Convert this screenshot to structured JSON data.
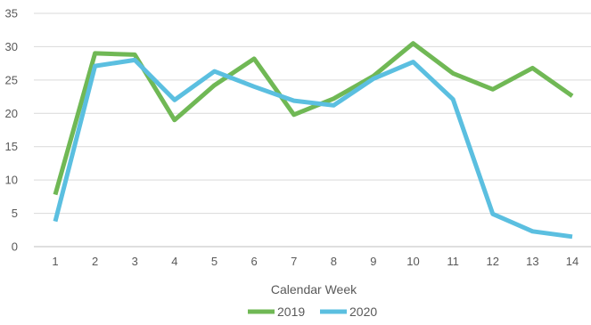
{
  "chart_data": {
    "type": "line",
    "title": "",
    "xlabel": "Calendar Week",
    "ylabel": "",
    "x": [
      1,
      2,
      3,
      4,
      5,
      6,
      7,
      8,
      9,
      10,
      11,
      12,
      13,
      14
    ],
    "x_tick_labels": [
      "1",
      "2",
      "3",
      "4",
      "5",
      "6",
      "7",
      "8",
      "9",
      "10",
      "11",
      "12",
      "13",
      "14"
    ],
    "ylim": [
      0,
      35
    ],
    "y_ticks": [
      0,
      5,
      10,
      15,
      20,
      25,
      30,
      35
    ],
    "y_tick_labels": [
      "0",
      "5",
      "10",
      "15",
      "20",
      "25",
      "30",
      "35"
    ],
    "grid": "horizontal",
    "legend_position": "bottom",
    "series": [
      {
        "name": "2019",
        "color": "#70b855",
        "values": [
          7.8,
          29.0,
          28.8,
          19.0,
          24.2,
          28.2,
          19.8,
          22.2,
          25.6,
          30.5,
          26.0,
          23.6,
          26.8,
          22.6
        ]
      },
      {
        "name": "2020",
        "color": "#5bbfe0",
        "values": [
          3.8,
          27.1,
          28.0,
          22.0,
          26.3,
          24.0,
          21.9,
          21.2,
          25.2,
          27.7,
          22.1,
          4.9,
          2.3,
          1.5
        ]
      }
    ]
  }
}
